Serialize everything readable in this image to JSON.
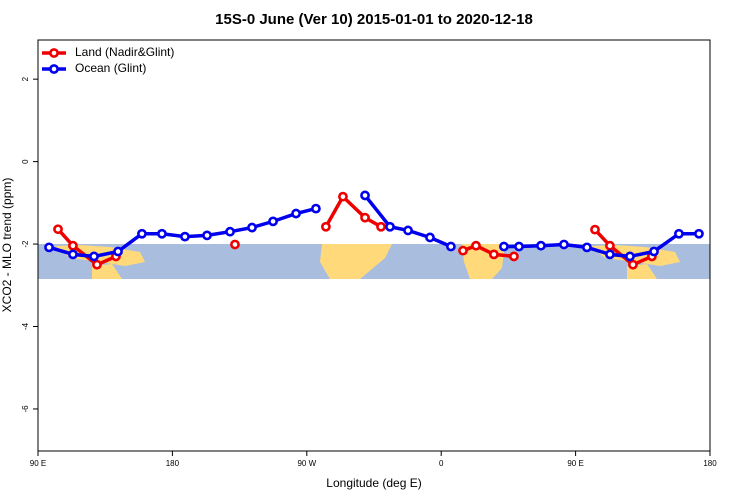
{
  "chart_data": {
    "type": "line",
    "title": "15S-0 June (Ver 10)   2015-01-01 to 2020-12-18",
    "x_label": "Longitude (deg E)",
    "y_label": "XCO2 - MLO trend (ppm)",
    "xlim": [
      90,
      540
    ],
    "xticks": [
      {
        "value": 90,
        "label": "90 E"
      },
      {
        "value": 180,
        "label": "180"
      },
      {
        "value": 270,
        "label": "90 W"
      },
      {
        "value": 360,
        "label": "0"
      },
      {
        "value": 450,
        "label": "90 E"
      },
      {
        "value": 540,
        "label": "180"
      }
    ],
    "ylim": [
      -7.02,
      2.95
    ],
    "yticks": [
      2,
      0,
      -2,
      -4,
      -6
    ],
    "legend": "topleft",
    "series": [
      {
        "name": "Land (Nadir&Glint)",
        "color": "#ee0000",
        "x": [
          103.4,
          113.4,
          129.5,
          142.2,
          null,
          221.9,
          null,
          282.8,
          294.2,
          309.0,
          319.7,
          null,
          374.6,
          383.3,
          395.3,
          408.7,
          null,
          463.0,
          473.0,
          488.4,
          501.1
        ],
        "values": [
          -1.64,
          -2.04,
          -2.5,
          -2.3,
          null,
          -2.01,
          null,
          -1.58,
          -0.85,
          -1.36,
          -1.58,
          null,
          -2.16,
          -2.04,
          -2.25,
          -2.3,
          null,
          -1.65,
          -2.04,
          -2.5,
          -2.3
        ]
      },
      {
        "name": "Ocean (Glint)",
        "color": "#0000ee",
        "x": [
          97.4,
          113.4,
          127.5,
          143.6,
          159.6,
          173.0,
          188.4,
          203.2,
          218.6,
          233.3,
          247.4,
          262.8,
          276.1,
          null,
          309.0,
          325.7,
          337.8,
          352.5,
          366.5,
          null,
          402.0,
          412.1,
          426.8,
          442.2,
          457.6,
          473.0,
          486.4,
          502.5,
          519.2,
          532.6
        ],
        "values": [
          -2.08,
          -2.25,
          -2.3,
          -2.18,
          -1.75,
          -1.75,
          -1.82,
          -1.79,
          -1.7,
          -1.6,
          -1.45,
          -1.26,
          -1.14,
          null,
          -0.82,
          -1.58,
          -1.67,
          -1.84,
          -2.06,
          null,
          -2.06,
          -2.06,
          -2.04,
          -2.01,
          -2.08,
          -2.25,
          -2.3,
          -2.18,
          -1.75,
          -1.75
        ]
      }
    ]
  }
}
